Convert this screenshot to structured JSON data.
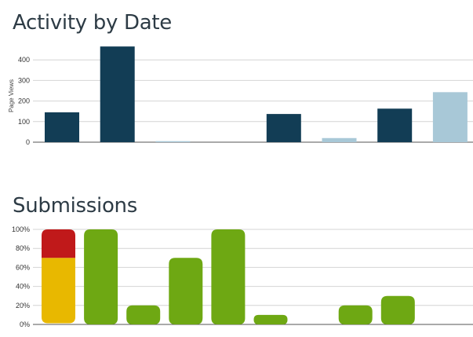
{
  "chart_data": [
    {
      "type": "bar",
      "title": "Activity by Date",
      "ylabel": "Page Views",
      "xlabel": "",
      "ylim": [
        0,
        500
      ],
      "yticks": [
        0,
        100,
        200,
        300,
        400
      ],
      "grid": true,
      "values": [
        145,
        465,
        5,
        0,
        137,
        20,
        163,
        243
      ],
      "bar_colors": [
        "#123d55",
        "#123d55",
        "#a8c8d7",
        "#123d55",
        "#123d55",
        "#a8c8d7",
        "#123d55",
        "#a8c8d7"
      ]
    },
    {
      "type": "bar",
      "title": "Submissions",
      "ylabel": "",
      "xlabel": "",
      "ylim": [
        0,
        100
      ],
      "yticks": [
        0,
        20,
        40,
        60,
        80,
        100
      ],
      "ytick_labels": [
        "0%",
        "20%",
        "40%",
        "60%",
        "80%",
        "100%"
      ],
      "grid": true,
      "stacked": true,
      "series": [
        {
          "color": "#e8b800",
          "values": [
            70,
            0,
            0,
            0,
            0,
            0,
            0,
            0,
            0,
            0,
            0
          ]
        },
        {
          "color": "#c0191a",
          "values": [
            30,
            0,
            0,
            0,
            0,
            0,
            0,
            0,
            0,
            0,
            0
          ]
        },
        {
          "color": "#6ea813",
          "values": [
            0,
            100,
            20,
            70,
            100,
            10,
            0,
            20,
            30,
            0,
            0
          ]
        }
      ]
    }
  ]
}
